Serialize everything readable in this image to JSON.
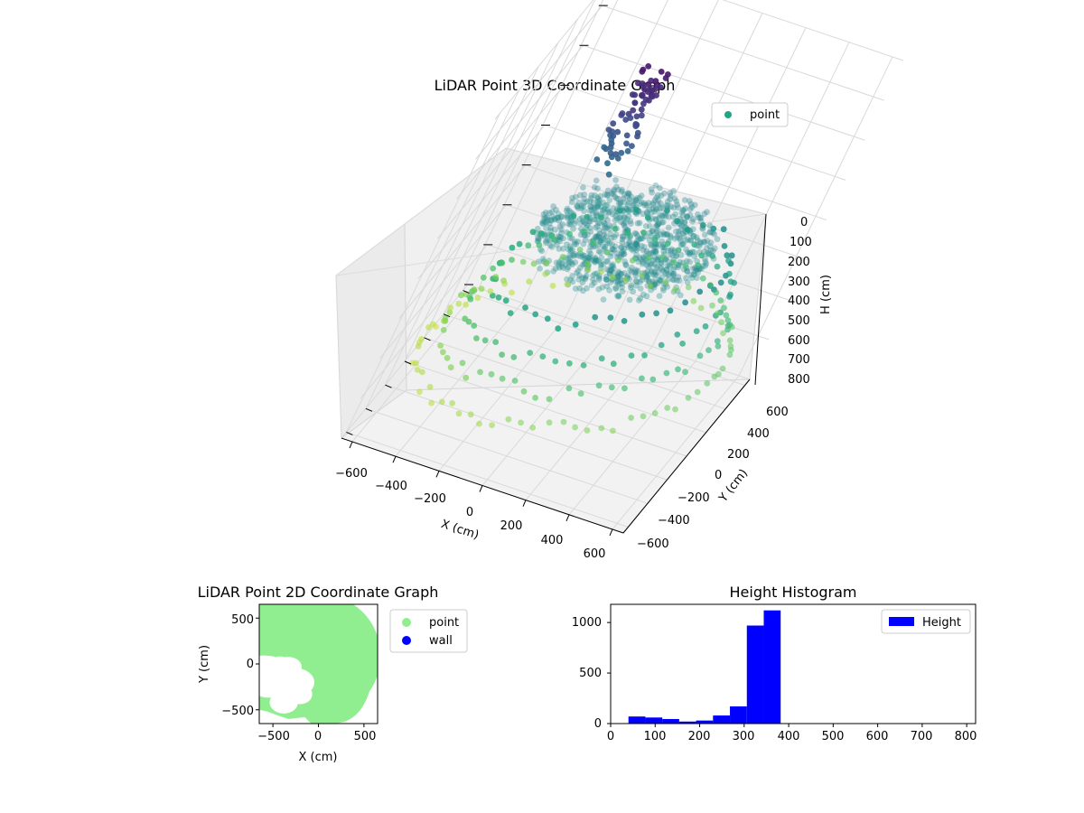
{
  "chart_data": [
    {
      "type": "scatter",
      "projection": "3d",
      "title": "LiDAR Point 3D Coordinate Graph",
      "xlabel": "X (cm)",
      "ylabel": "Y (cm)",
      "zlabel": "H (cm)",
      "xlim": [
        -650,
        650
      ],
      "ylim": [
        -650,
        650
      ],
      "zlim": [
        800,
        0
      ],
      "x_ticks": [
        "−600",
        "−400",
        "−200",
        "0",
        "200",
        "400",
        "600"
      ],
      "y_ticks": [
        "600",
        "400",
        "200",
        "0",
        "−200",
        "−400",
        "−600"
      ],
      "z_ticks": [
        "0",
        "100",
        "200",
        "300",
        "400",
        "500",
        "600",
        "700",
        "800"
      ],
      "colormap": "viridis",
      "legend": {
        "label": "point",
        "color": "#21a585",
        "placement": "top-right"
      }
    },
    {
      "type": "scatter",
      "title": "LiDAR Point 2D Coordinate Graph",
      "xlabel": "X (cm)",
      "ylabel": "Y (cm)",
      "xlim": [
        -650,
        650
      ],
      "ylim": [
        -650,
        650
      ],
      "x_ticks": [
        "−500",
        "0",
        "500"
      ],
      "y_ticks": [
        "500",
        "0",
        "−500"
      ],
      "series": [
        {
          "name": "point",
          "color": "#90ee90"
        },
        {
          "name": "wall",
          "color": "#0000ff"
        }
      ],
      "legend": {
        "placement": "outside-right"
      }
    },
    {
      "type": "bar",
      "subtype": "histogram",
      "title": "Height Histogram",
      "xlim": [
        0,
        820
      ],
      "ylim": [
        0,
        1180
      ],
      "x_ticks": [
        "0",
        "100",
        "200",
        "300",
        "400",
        "500",
        "600",
        "700",
        "800"
      ],
      "y_ticks": [
        "0",
        "500",
        "1000"
      ],
      "bin_edges": [
        40,
        78,
        116,
        154,
        192,
        230,
        268,
        306,
        344,
        382
      ],
      "values": [
        70,
        60,
        45,
        20,
        30,
        80,
        170,
        970,
        1120
      ],
      "color": "#0000ff",
      "legend": {
        "label": "Height",
        "placement": "top-right"
      }
    }
  ]
}
